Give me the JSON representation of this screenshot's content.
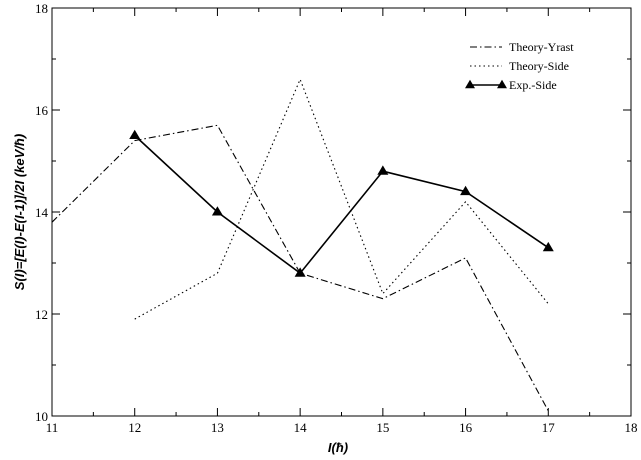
{
  "chart_data": {
    "type": "line",
    "title": "",
    "xlabel": "I(ħ)",
    "ylabel": "S(I)=[E(I)-E(I-1)]/2I (keV/ħ)",
    "xlim": [
      11,
      18
    ],
    "ylim": [
      10,
      18
    ],
    "xticks": [
      11,
      12,
      13,
      14,
      15,
      16,
      17,
      18
    ],
    "yticks": [
      10,
      12,
      14,
      16,
      18
    ],
    "grid": false,
    "legend_position": "top-right",
    "series": [
      {
        "name": "Theory-Yrast",
        "style": "dash-dot",
        "marker": "none",
        "x": [
          11,
          12,
          13,
          14,
          15,
          16,
          17
        ],
        "y": [
          13.8,
          15.4,
          15.7,
          12.8,
          12.3,
          13.1,
          10.1
        ]
      },
      {
        "name": "Theory-Side",
        "style": "dotted",
        "marker": "none",
        "x": [
          12,
          13,
          14,
          15,
          16,
          17
        ],
        "y": [
          11.9,
          12.8,
          16.6,
          12.4,
          14.2,
          12.2
        ]
      },
      {
        "name": "Exp.-Side",
        "style": "solid",
        "marker": "triangle",
        "x": [
          12,
          13,
          14,
          15,
          16,
          17
        ],
        "y": [
          15.5,
          14.0,
          12.8,
          14.8,
          14.4,
          13.3
        ]
      }
    ]
  }
}
